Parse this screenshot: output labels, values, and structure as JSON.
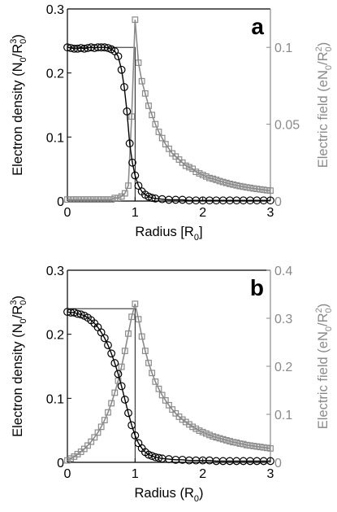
{
  "colors": {
    "density": "#000000",
    "field": "#8a8a8a",
    "axis": "#000000"
  },
  "chart_data": [
    {
      "type": "line",
      "panel": "a",
      "xlabel_main": "Radius [R",
      "xlabel_sub": "0",
      "xlabel_end": "]",
      "ylabel_left": "Electron density (N0/R0^3)",
      "ylabel_right": "Electric field (eN0/R0^2)",
      "xlim": [
        0,
        3
      ],
      "ylim_left": [
        0,
        0.3
      ],
      "ylim_right": [
        0,
        0.125
      ],
      "xticks": [
        0,
        1,
        2,
        3
      ],
      "yticks_left": [
        0,
        0.1,
        0.2,
        0.3
      ],
      "yticks_right": [
        0,
        0.05,
        0.1
      ],
      "xtick_labels": [
        "0",
        "1",
        "2",
        "3"
      ],
      "ytick_labels_left": [
        "0",
        "0.1",
        "0.2",
        "0.3"
      ],
      "ytick_labels_right": [
        "0",
        "0.05",
        "0.1"
      ],
      "step_reference": {
        "value": 0.24,
        "edge": 1.0
      },
      "density_series": {
        "x": [
          0,
          0.05,
          0.1,
          0.15,
          0.2,
          0.25,
          0.3,
          0.35,
          0.4,
          0.45,
          0.5,
          0.55,
          0.6,
          0.65,
          0.7,
          0.75,
          0.8,
          0.84,
          0.88,
          0.92,
          0.96,
          1.0,
          1.05,
          1.1,
          1.15,
          1.2,
          1.25,
          1.3,
          1.4,
          1.5,
          1.6,
          1.7,
          1.8,
          1.9,
          2.0,
          2.1,
          2.2,
          2.3,
          2.4,
          2.5,
          2.6,
          2.7,
          2.8,
          2.9,
          3.0
        ],
        "y": [
          0.24,
          0.239,
          0.238,
          0.238,
          0.239,
          0.238,
          0.239,
          0.24,
          0.239,
          0.24,
          0.24,
          0.24,
          0.239,
          0.237,
          0.234,
          0.226,
          0.205,
          0.178,
          0.14,
          0.09,
          0.06,
          0.04,
          0.024,
          0.015,
          0.01,
          0.007,
          0.005,
          0.004,
          0.003,
          0.002,
          0.002,
          0.002,
          0.001,
          0.001,
          0.001,
          0.001,
          0.001,
          0.001,
          0.001,
          0.001,
          0.001,
          0.001,
          0.001,
          0.001,
          0.001
        ]
      },
      "field_series": {
        "x": [
          0,
          0.05,
          0.1,
          0.15,
          0.2,
          0.25,
          0.3,
          0.35,
          0.4,
          0.45,
          0.5,
          0.55,
          0.6,
          0.65,
          0.7,
          0.75,
          0.8,
          0.85,
          0.9,
          0.95,
          1.0,
          1.05,
          1.1,
          1.15,
          1.2,
          1.25,
          1.3,
          1.35,
          1.4,
          1.45,
          1.5,
          1.55,
          1.6,
          1.65,
          1.7,
          1.75,
          1.8,
          1.85,
          1.9,
          1.95,
          2.0,
          2.05,
          2.1,
          2.15,
          2.2,
          2.25,
          2.3,
          2.35,
          2.4,
          2.45,
          2.5,
          2.55,
          2.6,
          2.65,
          2.7,
          2.75,
          2.8,
          2.85,
          2.9,
          2.95,
          3.0
        ],
        "y": [
          0.001,
          0.001,
          0.001,
          0.001,
          0.001,
          0.001,
          0.001,
          0.001,
          0.001,
          0.001,
          0.001,
          0.001,
          0.001,
          0.001,
          0.002,
          0.002,
          0.003,
          0.005,
          0.01,
          0.055,
          0.118,
          0.09,
          0.078,
          0.07,
          0.062,
          0.056,
          0.05,
          0.045,
          0.041,
          0.037,
          0.034,
          0.031,
          0.029,
          0.027,
          0.025,
          0.023,
          0.022,
          0.021,
          0.019,
          0.018,
          0.017,
          0.016,
          0.015,
          0.0145,
          0.0138,
          0.013,
          0.0124,
          0.0118,
          0.0112,
          0.0107,
          0.0102,
          0.0097,
          0.0093,
          0.0089,
          0.0086,
          0.0082,
          0.0079,
          0.0076,
          0.0073,
          0.007,
          0.0068
        ]
      }
    },
    {
      "type": "line",
      "panel": "b",
      "xlabel_main": "Radius (R",
      "xlabel_sub": "0",
      "xlabel_end": ")",
      "ylabel_left": "Electron density (N0/R0^3)",
      "ylabel_right": "Electric field (eN0/R0^2)",
      "xlim": [
        0,
        3
      ],
      "ylim_left": [
        0,
        0.3
      ],
      "ylim_right": [
        0,
        0.4
      ],
      "xticks": [
        0,
        1,
        2,
        3
      ],
      "yticks_left": [
        0,
        0.1,
        0.2,
        0.3
      ],
      "yticks_right": [
        0,
        0.1,
        0.2,
        0.3,
        0.4
      ],
      "xtick_labels": [
        "0",
        "1",
        "2",
        "3"
      ],
      "ytick_labels_left": [
        "0",
        "0.1",
        "0.2",
        "0.3"
      ],
      "ytick_labels_right": [
        "0",
        "0.1",
        "0.2",
        "0.3",
        "0.4"
      ],
      "step_reference": {
        "value": 0.24,
        "edge": 1.0
      },
      "density_series": {
        "x": [
          0,
          0.05,
          0.1,
          0.15,
          0.2,
          0.25,
          0.3,
          0.35,
          0.4,
          0.45,
          0.5,
          0.55,
          0.6,
          0.65,
          0.7,
          0.75,
          0.8,
          0.85,
          0.9,
          0.95,
          1.0,
          1.05,
          1.1,
          1.15,
          1.2,
          1.25,
          1.3,
          1.35,
          1.4,
          1.5,
          1.6,
          1.7,
          1.8,
          1.9,
          2.0,
          2.1,
          2.2,
          2.3,
          2.4,
          2.5,
          2.6,
          2.7,
          2.8,
          2.9,
          3.0
        ],
        "y": [
          0.235,
          0.234,
          0.234,
          0.232,
          0.231,
          0.229,
          0.226,
          0.222,
          0.217,
          0.211,
          0.203,
          0.194,
          0.183,
          0.17,
          0.155,
          0.138,
          0.119,
          0.098,
          0.077,
          0.058,
          0.042,
          0.03,
          0.022,
          0.016,
          0.012,
          0.01,
          0.008,
          0.007,
          0.006,
          0.005,
          0.004,
          0.004,
          0.003,
          0.003,
          0.003,
          0.003,
          0.002,
          0.002,
          0.002,
          0.002,
          0.002,
          0.002,
          0.002,
          0.002,
          0.002
        ]
      },
      "field_series": {
        "x": [
          0,
          0.05,
          0.1,
          0.15,
          0.2,
          0.25,
          0.3,
          0.35,
          0.4,
          0.45,
          0.5,
          0.55,
          0.6,
          0.65,
          0.7,
          0.75,
          0.8,
          0.85,
          0.9,
          0.95,
          1.0,
          1.05,
          1.1,
          1.15,
          1.2,
          1.25,
          1.3,
          1.35,
          1.4,
          1.45,
          1.5,
          1.55,
          1.6,
          1.65,
          1.7,
          1.75,
          1.8,
          1.85,
          1.9,
          1.95,
          2.0,
          2.05,
          2.1,
          2.15,
          2.2,
          2.25,
          2.3,
          2.35,
          2.4,
          2.45,
          2.5,
          2.55,
          2.6,
          2.65,
          2.7,
          2.75,
          2.8,
          2.85,
          2.9,
          2.95,
          3.0
        ],
        "y": [
          0.004,
          0.008,
          0.012,
          0.017,
          0.022,
          0.028,
          0.035,
          0.043,
          0.052,
          0.062,
          0.074,
          0.088,
          0.104,
          0.123,
          0.145,
          0.17,
          0.199,
          0.232,
          0.268,
          0.303,
          0.33,
          0.298,
          0.262,
          0.232,
          0.207,
          0.186,
          0.168,
          0.153,
          0.14,
          0.129,
          0.119,
          0.11,
          0.102,
          0.095,
          0.089,
          0.084,
          0.079,
          0.074,
          0.07,
          0.066,
          0.063,
          0.06,
          0.057,
          0.054,
          0.052,
          0.05,
          0.048,
          0.046,
          0.044,
          0.042,
          0.041,
          0.039,
          0.038,
          0.036,
          0.035,
          0.034,
          0.033,
          0.032,
          0.031,
          0.03,
          0.029
        ]
      }
    }
  ]
}
